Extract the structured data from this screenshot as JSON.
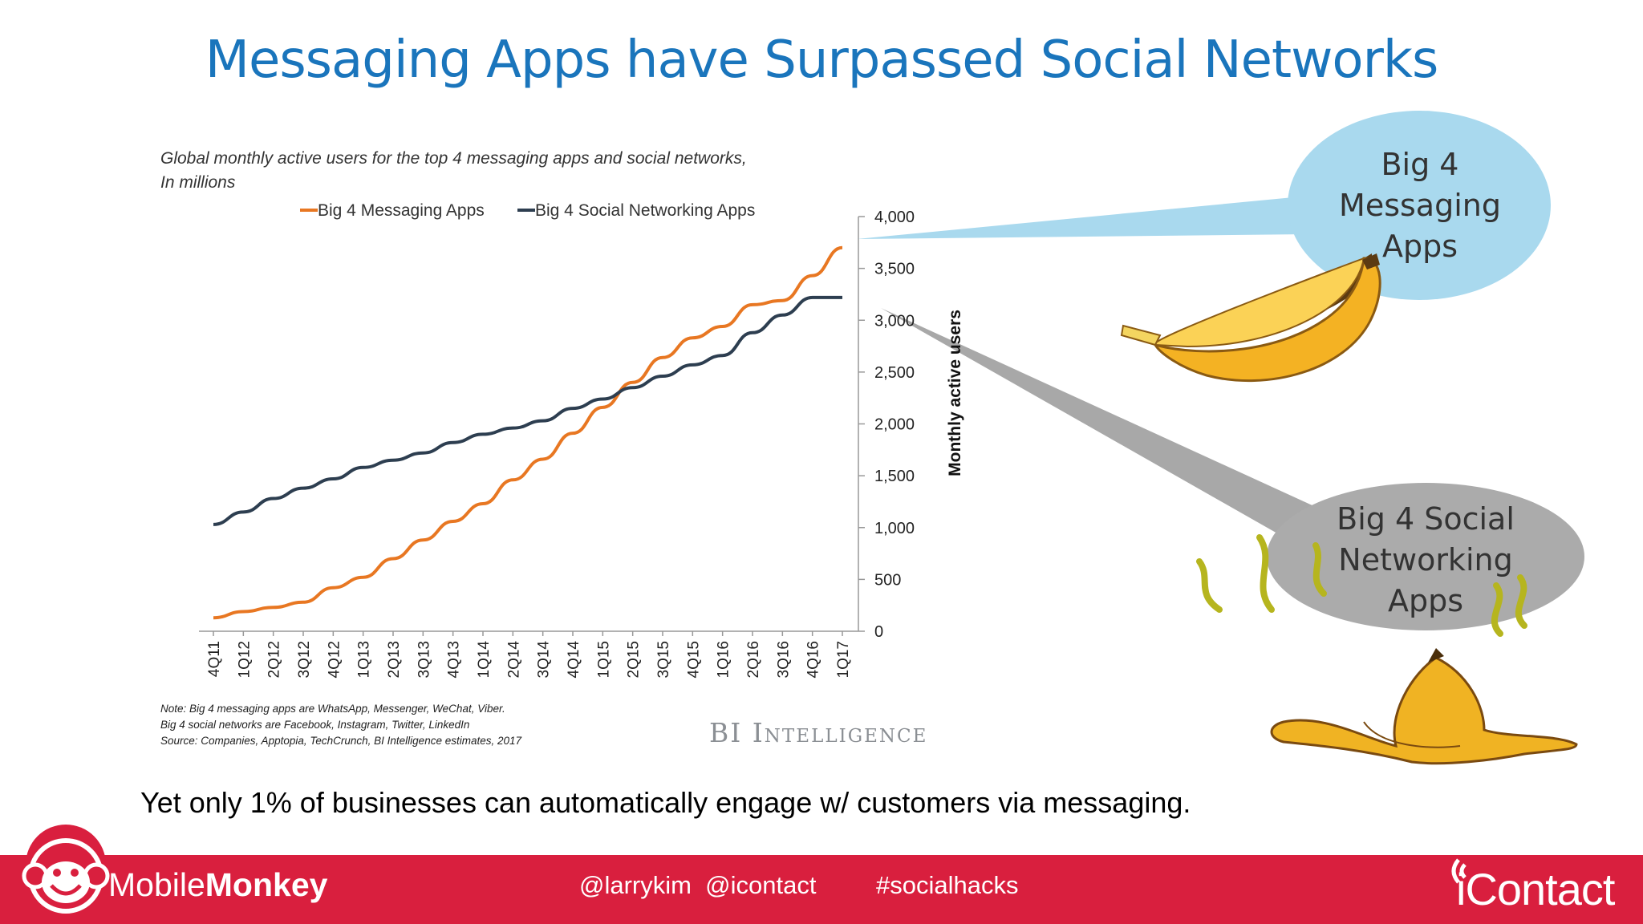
{
  "slide": {
    "title": "Messaging Apps have Surpassed Social Networks",
    "tagline": "Yet only 1% of businesses can automatically engage w/ customers via messaging."
  },
  "chart_data": {
    "type": "line",
    "title": "Global monthly active users for the top 4 messaging apps and social networks,",
    "subtitle": "In millions",
    "ylabel": "Monthly active users",
    "xlabel": "",
    "ylim": [
      0,
      4000
    ],
    "yticks": [
      0,
      500,
      1000,
      1500,
      2000,
      2500,
      3000,
      3500,
      4000
    ],
    "ytick_labels": [
      "0",
      "500",
      "1,000",
      "1,500",
      "2,000",
      "2,500",
      "3,000",
      "3,500",
      "4,000"
    ],
    "legend_position": "top",
    "categories": [
      "4Q11",
      "1Q12",
      "2Q12",
      "3Q12",
      "4Q12",
      "1Q13",
      "2Q13",
      "3Q13",
      "4Q13",
      "1Q14",
      "2Q14",
      "3Q14",
      "4Q14",
      "1Q15",
      "2Q15",
      "3Q15",
      "4Q15",
      "1Q16",
      "2Q16",
      "3Q16",
      "4Q16",
      "1Q17"
    ],
    "series": [
      {
        "name": "Big 4 Messaging Apps",
        "color": "#e87722",
        "values": [
          130,
          190,
          230,
          280,
          420,
          520,
          700,
          880,
          1060,
          1230,
          1460,
          1660,
          1910,
          2160,
          2400,
          2640,
          2830,
          2940,
          3150,
          3190,
          3430,
          3700
        ]
      },
      {
        "name": "Big 4 Social Networking Apps",
        "color": "#2d3e50",
        "values": [
          1030,
          1150,
          1280,
          1380,
          1470,
          1580,
          1650,
          1720,
          1820,
          1900,
          1960,
          2030,
          2150,
          2240,
          2350,
          2460,
          2570,
          2660,
          2880,
          3050,
          3220,
          3220
        ]
      }
    ],
    "notes": [
      "Note: Big 4 messaging apps are WhatsApp, Messenger, WeChat, Viber.",
      "Big 4 social networks are Facebook, Instagram, Twitter, LinkedIn",
      "Source: Companies,  Apptopia, TechCrunch,  BI Intelligence estimates, 2017"
    ],
    "source_logo": "BI Intelligence"
  },
  "callouts": {
    "messaging": {
      "line1": "Big 4",
      "line2": "Messaging",
      "line3": "Apps",
      "color": "#a9d9ee"
    },
    "social": {
      "line1": "Big 4 Social",
      "line2": "Networking",
      "line3": "Apps",
      "color": "#ababab"
    }
  },
  "footer": {
    "brand_left_light": "Mobile",
    "brand_left_bold": "Monkey",
    "handles": "@larrykim  @icontact",
    "hashtag": "#socialhacks",
    "brand_right": "iContact",
    "bar_color": "#d91f3e"
  }
}
